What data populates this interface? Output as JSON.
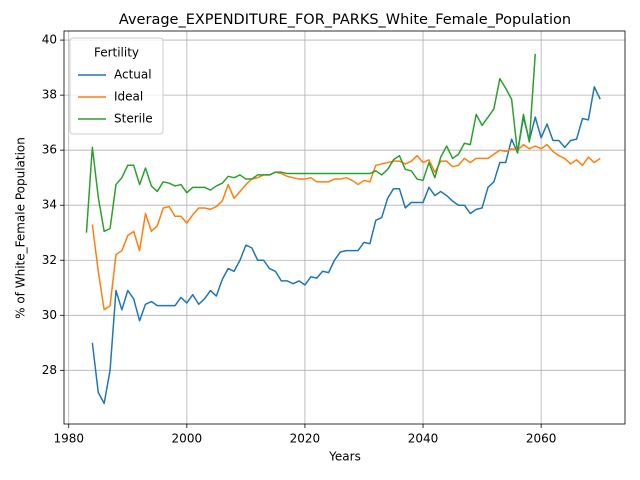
{
  "chart_data": {
    "type": "line",
    "title": "Average_EXPENDITURE_FOR_PARKS_White_Female_Population",
    "xlabel": "Years",
    "ylabel": "% of White_Female Population",
    "legend_title": "Fertility",
    "legend_loc": "upper left",
    "grid": true,
    "xlim": [
      1979.2,
      2074.2
    ],
    "ylim": [
      26.05,
      40.33
    ],
    "xticks": [
      1980,
      2000,
      2020,
      2040,
      2060
    ],
    "yticks": [
      28,
      30,
      32,
      34,
      36,
      38,
      40
    ],
    "x": [
      1983,
      1984,
      1985,
      1986,
      1987,
      1988,
      1989,
      1990,
      1991,
      1992,
      1993,
      1994,
      1995,
      1996,
      1997,
      1998,
      1999,
      2000,
      2001,
      2002,
      2003,
      2004,
      2005,
      2006,
      2007,
      2008,
      2009,
      2010,
      2011,
      2012,
      2013,
      2014,
      2015,
      2016,
      2017,
      2018,
      2019,
      2020,
      2021,
      2022,
      2023,
      2024,
      2025,
      2026,
      2027,
      2028,
      2029,
      2030,
      2031,
      2032,
      2033,
      2034,
      2035,
      2036,
      2037,
      2038,
      2039,
      2040,
      2041,
      2042,
      2043,
      2044,
      2045,
      2046,
      2047,
      2048,
      2049,
      2050,
      2051,
      2052,
      2053,
      2054,
      2055,
      2056,
      2057,
      2058,
      2059,
      2060,
      2061,
      2062,
      2063,
      2064,
      2065,
      2066,
      2067,
      2068,
      2069,
      2070
    ],
    "series": [
      {
        "name": "Actual",
        "color": "#1f77b4",
        "values": [
          null,
          29.0,
          27.2,
          26.8,
          28.0,
          30.9,
          30.2,
          30.9,
          30.6,
          29.8,
          30.4,
          30.5,
          30.35,
          30.35,
          30.35,
          30.35,
          30.65,
          30.45,
          30.75,
          30.4,
          30.6,
          30.9,
          30.7,
          31.3,
          31.7,
          31.6,
          32.0,
          32.55,
          32.45,
          32.0,
          32.0,
          31.7,
          31.6,
          31.25,
          31.25,
          31.15,
          31.25,
          31.1,
          31.4,
          31.35,
          31.6,
          31.55,
          32.0,
          32.3,
          32.35,
          32.35,
          32.35,
          32.65,
          32.6,
          33.45,
          33.55,
          34.25,
          34.6,
          34.6,
          33.9,
          34.1,
          34.1,
          34.1,
          34.65,
          34.35,
          34.5,
          34.35,
          34.15,
          34.0,
          34.0,
          33.7,
          33.85,
          33.9,
          34.65,
          34.85,
          35.55,
          35.55,
          36.4,
          35.9,
          37.2,
          36.35,
          37.2,
          36.45,
          36.95,
          36.35,
          36.35,
          36.1,
          36.35,
          36.4,
          37.15,
          37.1,
          38.3,
          37.85
        ]
      },
      {
        "name": "Ideal",
        "color": "#ff7f0e",
        "values": [
          null,
          33.3,
          31.6,
          30.2,
          30.35,
          32.2,
          32.35,
          32.9,
          33.05,
          32.35,
          33.7,
          33.05,
          33.25,
          33.9,
          33.95,
          33.6,
          33.6,
          33.35,
          33.65,
          33.9,
          33.9,
          33.85,
          33.95,
          34.15,
          34.75,
          34.25,
          34.5,
          34.75,
          34.95,
          35.0,
          35.1,
          35.1,
          35.2,
          35.15,
          35.05,
          35.0,
          34.95,
          34.95,
          35.0,
          34.85,
          34.85,
          34.85,
          34.95,
          34.95,
          35.0,
          34.9,
          34.75,
          34.9,
          34.85,
          35.45,
          35.5,
          35.55,
          35.6,
          35.6,
          35.5,
          35.6,
          35.8,
          35.55,
          35.65,
          35.2,
          35.6,
          35.6,
          35.4,
          35.45,
          35.7,
          35.55,
          35.7,
          35.7,
          35.7,
          35.85,
          36.0,
          35.95,
          36.05,
          36.0,
          36.2,
          36.05,
          36.15,
          36.05,
          36.2,
          35.95,
          35.8,
          35.7,
          35.5,
          35.65,
          35.45,
          35.75,
          35.55,
          35.7
        ]
      },
      {
        "name": "Sterile",
        "color": "#2ca02c",
        "values": [
          33.0,
          36.1,
          34.3,
          33.05,
          33.15,
          34.75,
          35.0,
          35.45,
          35.45,
          34.75,
          35.35,
          34.7,
          34.5,
          34.85,
          34.8,
          34.7,
          34.75,
          34.45,
          34.65,
          34.65,
          34.65,
          34.55,
          34.7,
          34.8,
          35.05,
          35.0,
          35.1,
          34.95,
          34.95,
          35.1,
          35.1,
          35.1,
          35.2,
          35.2,
          35.15,
          35.15,
          35.15,
          35.15,
          35.15,
          35.15,
          35.15,
          35.15,
          35.15,
          35.15,
          35.15,
          35.15,
          35.15,
          35.15,
          35.15,
          35.25,
          35.1,
          35.3,
          35.65,
          35.8,
          35.3,
          35.25,
          34.95,
          34.9,
          35.55,
          35.0,
          35.75,
          36.15,
          35.7,
          35.85,
          36.25,
          36.2,
          37.3,
          36.9,
          37.2,
          37.5,
          38.6,
          38.25,
          37.85,
          35.9,
          37.3,
          36.3,
          39.5,
          null,
          null,
          null,
          null,
          null,
          null,
          null,
          null,
          null,
          null,
          null
        ]
      }
    ]
  }
}
